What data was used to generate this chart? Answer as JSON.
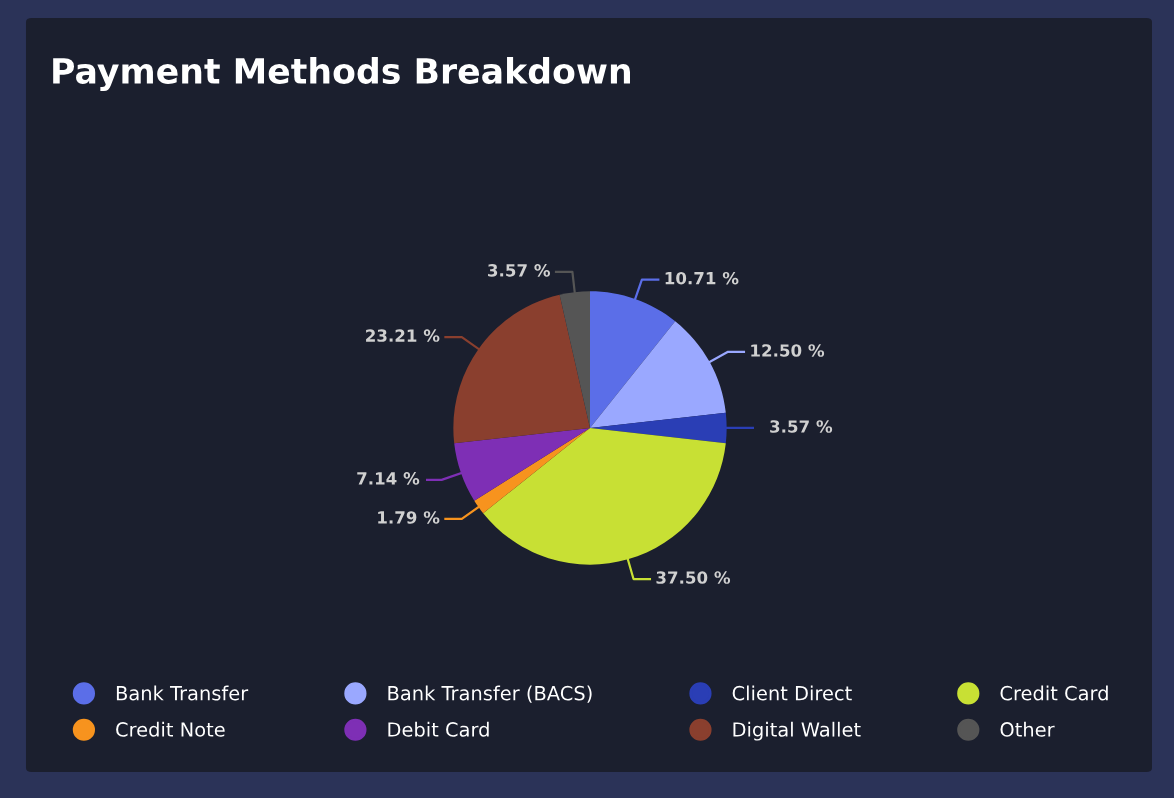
{
  "chart_data": {
    "type": "pie",
    "title": "Payment Methods Breakdown",
    "categories": [
      "Bank Transfer",
      "Bank Transfer (BACS)",
      "Client Direct",
      "Credit Card",
      "Credit Note",
      "Debit Card",
      "Digital Wallet",
      "Other"
    ],
    "values": [
      10.71,
      12.5,
      3.57,
      37.5,
      1.79,
      7.14,
      23.21,
      3.57
    ],
    "value_labels": [
      "10.71 %",
      "12.50 %",
      "3.57 %",
      "37.50 %",
      "1.79 %",
      "7.14 %",
      "23.21 %",
      "3.57 %"
    ],
    "colors": [
      "#5b6ee8",
      "#9aa8ff",
      "#2a3eb5",
      "#c8e034",
      "#f7931e",
      "#7e2fb5",
      "#8a3f2e",
      "#555555"
    ],
    "legend": "bottom"
  }
}
